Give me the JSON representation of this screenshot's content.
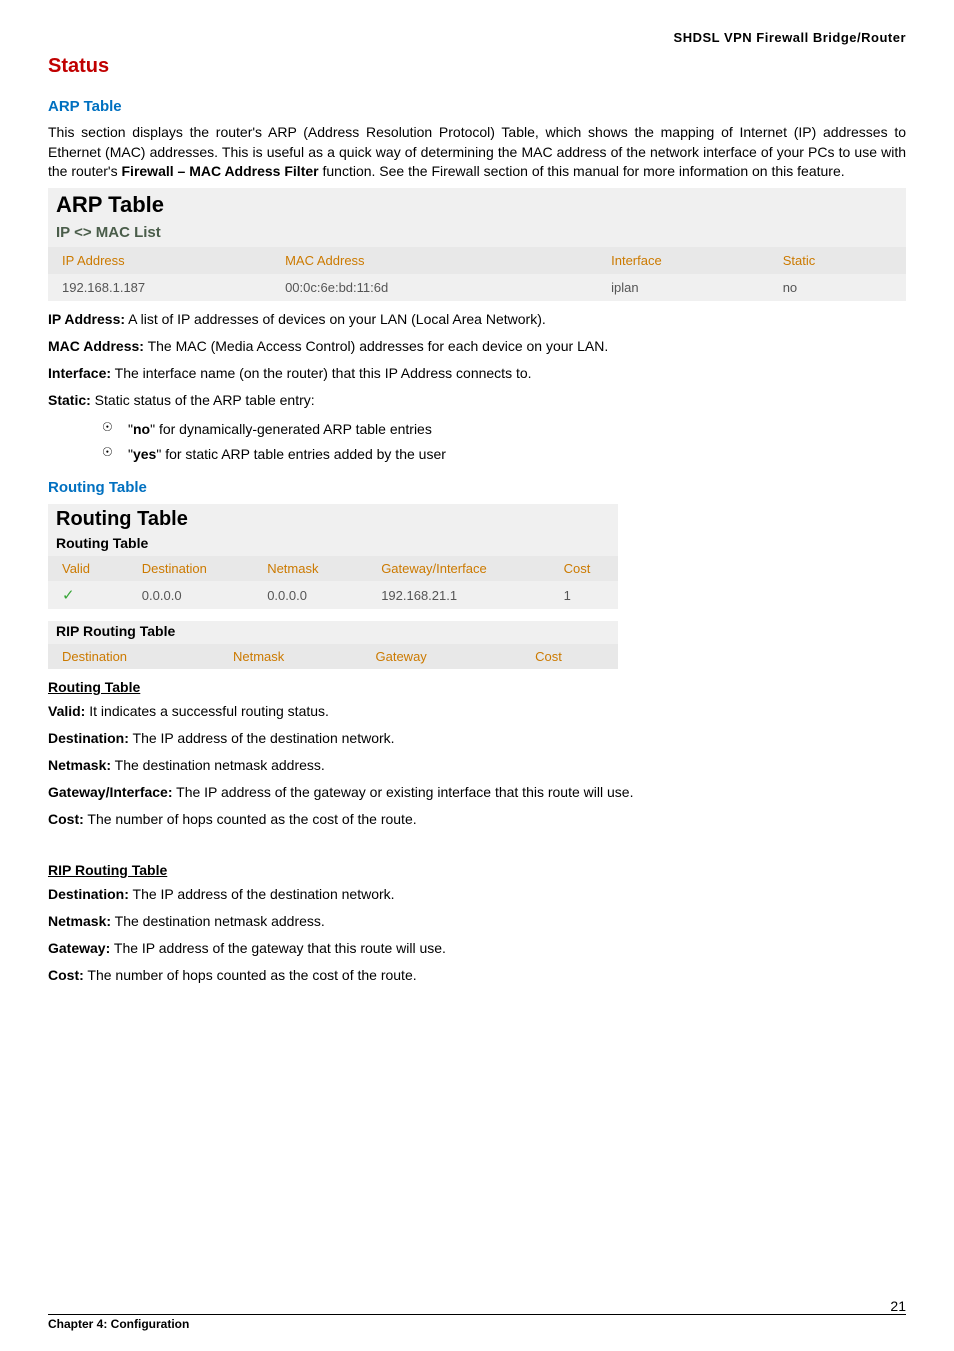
{
  "header": {
    "product": "SHDSL VPN Firewall Bridge/Router"
  },
  "status": {
    "title": "Status"
  },
  "arp": {
    "heading": "ARP Table",
    "intro_html": "This section displays the router's ARP (Address Resolution Protocol) Table, which shows the mapping of Internet (IP) addresses to Ethernet (MAC) addresses. This is useful as a quick way of determining the MAC address of the network interface of your PCs to use with the router's <b>Firewall – MAC Address Filter</b> function. See the Firewall section of this manual for more information on this feature.",
    "table": {
      "title": "ARP Table",
      "subtitle": "IP <> MAC List",
      "title_fontsize": 22,
      "subtitle_color": "#4a5d4a",
      "header_bg": "#e8e8e8",
      "header_color": "#cc7a00",
      "row_bg": "#f0f0f0",
      "cell_color": "#555555",
      "columns": [
        "IP Address",
        "MAC Address",
        "Interface",
        "Static"
      ],
      "rows": [
        [
          "192.168.1.187",
          "00:0c:6e:bd:11:6d",
          "iplan",
          "no"
        ]
      ]
    },
    "defs": {
      "ip_label": "IP Address:",
      "ip_text": " A list of IP addresses of devices on your LAN (Local Area Network).",
      "mac_label": "MAC Address:",
      "mac_text": " The MAC (Media Access Control) addresses for each device on your LAN.",
      "iface_label": "Interface:",
      "iface_text": " The interface name (on the router) that this IP Address connects to.",
      "static_label": "Static:",
      "static_text": " Static status of the ARP table entry:",
      "bullet_no": "\"no\" for dynamically-generated ARP table entries",
      "bullet_yes": "\"yes\" for static ARP table entries added by the user"
    }
  },
  "routing": {
    "heading": "Routing Table",
    "main": {
      "title": "Routing Table",
      "subtitle": "Routing Table",
      "title_fontsize": 20,
      "header_bg": "#e8e8e8",
      "header_color": "#cc7a00",
      "row_bg": "#f0f0f0",
      "check_color": "#39a639",
      "columns": [
        "Valid",
        "Destination",
        "Netmask",
        "Gateway/Interface",
        "Cost"
      ],
      "rows": [
        [
          "✓",
          "0.0.0.0",
          "0.0.0.0",
          "192.168.21.1",
          "1"
        ]
      ]
    },
    "rip": {
      "subtitle": "RIP Routing Table",
      "header_bg": "#e8e8e8",
      "header_color": "#cc7a00",
      "columns": [
        "Destination",
        "Netmask",
        "Gateway",
        "Cost"
      ]
    },
    "defs_main": {
      "title": "Routing Table",
      "valid_label": "Valid:",
      "valid_text": "   It indicates a successful routing status.",
      "dest_label": "Destination:",
      "dest_text": " The IP address of the destination network.",
      "netmask_label": "Netmask:",
      "netmask_text": " The destination netmask address.",
      "gw_label": "Gateway/Interface:",
      "gw_text": " The IP address of the gateway or existing interface that this route will use.",
      "cost_label": "Cost:",
      "cost_text": " The number of hops counted as the cost of the route."
    },
    "defs_rip": {
      "title": "RIP Routing Table",
      "dest_label": "Destination:",
      "dest_text": " The IP address of the destination network.",
      "netmask_label": "Netmask:",
      "netmask_text": " The destination netmask address.",
      "gw_label": "Gateway:",
      "gw_text": " The IP address of the gateway that this route will use.",
      "cost_label": "Cost:",
      "cost_text": " The number of hops counted as the cost of the route."
    }
  },
  "footer": {
    "chapter": "Chapter 4: Configuration",
    "page": "21"
  }
}
